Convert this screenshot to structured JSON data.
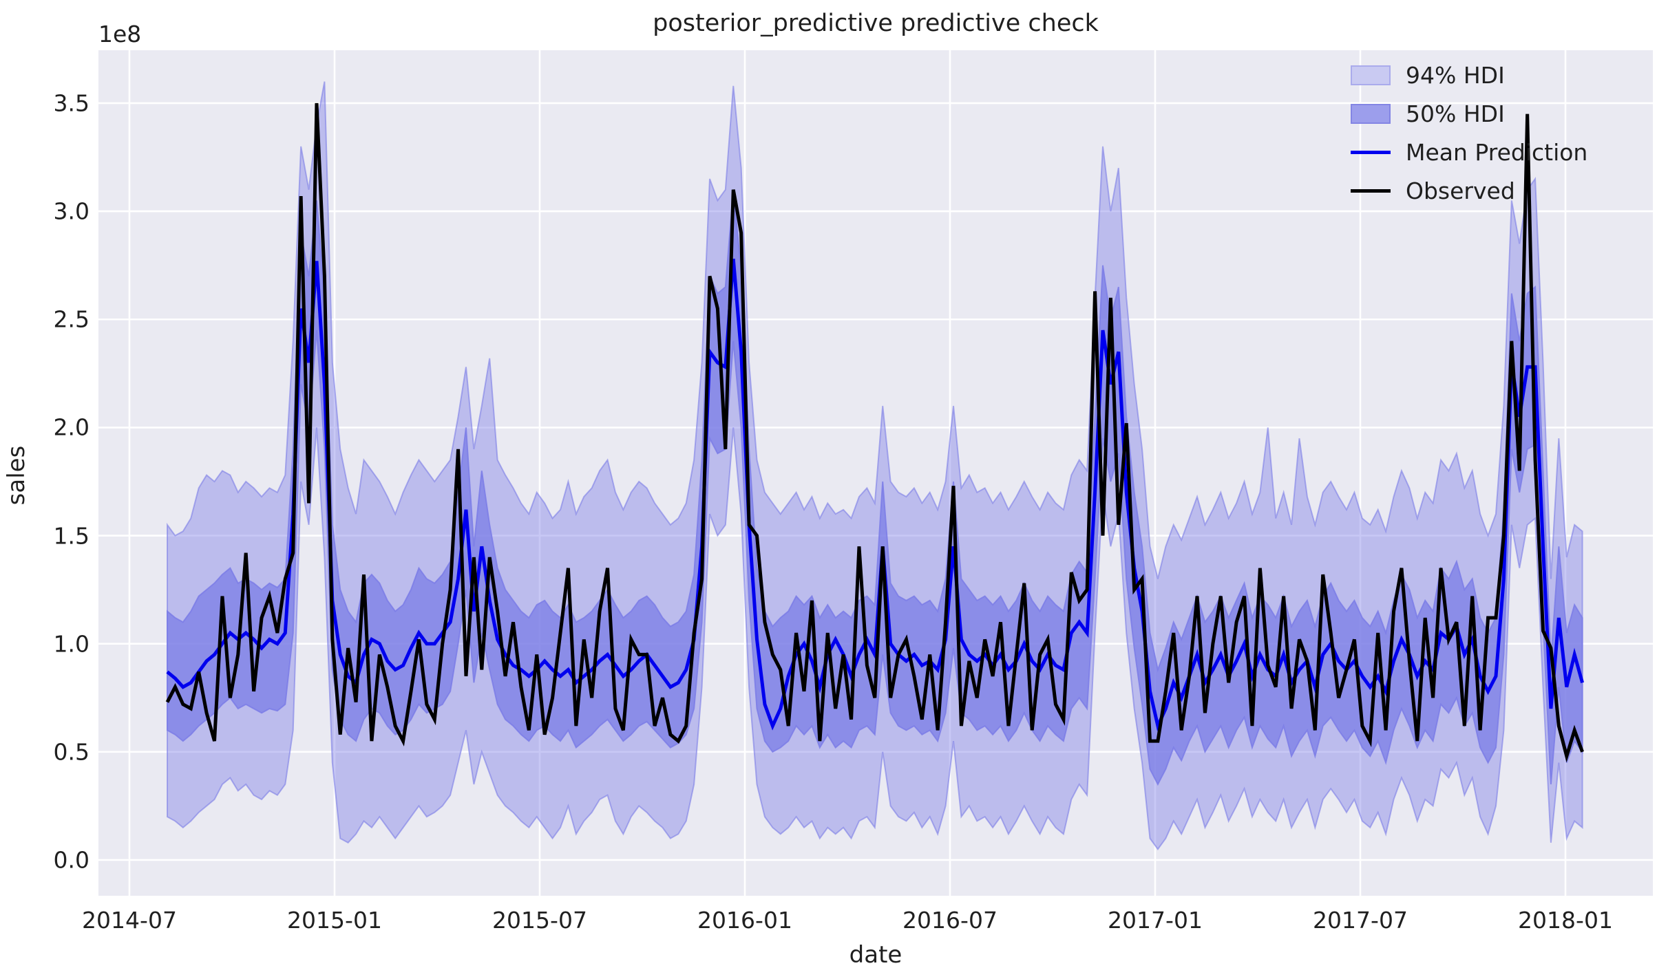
{
  "figure": {
    "title": "posterior_predictive predictive check",
    "background_color": "#ffffff",
    "axes_background_color": "#eaeaf2",
    "gridline_color": "#ffffff",
    "text_color": "#1f1f1f"
  },
  "x_axis": {
    "label": "date",
    "tick_labels": [
      "2014-07",
      "2015-01",
      "2015-07",
      "2016-01",
      "2016-07",
      "2017-01",
      "2017-07",
      "2018-01"
    ]
  },
  "y_axis": {
    "label": "sales",
    "offset_label": "1e8",
    "tick_values": [
      0.0,
      0.5,
      1.0,
      1.5,
      2.0,
      2.5,
      3.0,
      3.5
    ],
    "tick_labels": [
      "0.0",
      "0.5",
      "1.0",
      "1.5",
      "2.0",
      "2.5",
      "3.0",
      "3.5"
    ]
  },
  "legend": {
    "items": [
      {
        "label": "94% HDI",
        "type": "patch",
        "swatch_fill": "#c9caf2",
        "swatch_border": "#aaabec"
      },
      {
        "label": "50% HDI",
        "type": "patch",
        "swatch_fill": "#9c9eec",
        "swatch_border": "#8385e4"
      },
      {
        "label": "Mean Prediction",
        "type": "line",
        "color": "#0000ee"
      },
      {
        "label": "Observed",
        "type": "line",
        "color": "#000000"
      }
    ]
  },
  "chart_data": {
    "type": "line",
    "title": "posterior_predictive predictive check",
    "xlabel": "date",
    "ylabel": "sales",
    "y_unit_multiplier": "1e8",
    "ylim": [
      -0.165,
      3.745
    ],
    "grid": true,
    "legend_position": "upper right",
    "x_start_date": "2014-08-03",
    "x_interval_days": 7,
    "x_count": 181,
    "x_tick_labels": [
      "2014-07",
      "2015-01",
      "2015-07",
      "2016-01",
      "2016-07",
      "2017-01",
      "2017-07",
      "2018-01"
    ],
    "band_base_color": "#7b7de6",
    "band_94_alpha": 0.42,
    "band_50_alpha": 0.75,
    "series": [
      {
        "name": "94% HDI",
        "type": "band",
        "upper": [
          1.55,
          1.5,
          1.52,
          1.58,
          1.72,
          1.78,
          1.75,
          1.8,
          1.78,
          1.7,
          1.75,
          1.72,
          1.68,
          1.72,
          1.7,
          1.78,
          2.4,
          3.3,
          3.1,
          3.4,
          3.6,
          2.3,
          1.9,
          1.72,
          1.6,
          1.85,
          1.8,
          1.75,
          1.68,
          1.6,
          1.7,
          1.78,
          1.85,
          1.8,
          1.75,
          1.8,
          1.85,
          2.05,
          2.28,
          1.9,
          2.1,
          2.32,
          1.85,
          1.78,
          1.72,
          1.65,
          1.6,
          1.7,
          1.65,
          1.58,
          1.62,
          1.75,
          1.6,
          1.68,
          1.72,
          1.8,
          1.85,
          1.7,
          1.62,
          1.7,
          1.75,
          1.72,
          1.65,
          1.6,
          1.55,
          1.58,
          1.65,
          1.85,
          2.3,
          3.15,
          3.05,
          3.1,
          3.58,
          3.2,
          2.3,
          1.85,
          1.7,
          1.65,
          1.6,
          1.65,
          1.7,
          1.62,
          1.68,
          1.58,
          1.65,
          1.6,
          1.62,
          1.58,
          1.68,
          1.72,
          1.65,
          2.1,
          1.75,
          1.7,
          1.68,
          1.72,
          1.65,
          1.7,
          1.62,
          1.75,
          2.1,
          1.72,
          1.78,
          1.7,
          1.72,
          1.65,
          1.7,
          1.62,
          1.68,
          1.75,
          1.68,
          1.62,
          1.7,
          1.65,
          1.62,
          1.78,
          1.85,
          1.8,
          2.6,
          3.3,
          3.0,
          3.2,
          2.6,
          2.2,
          1.9,
          1.45,
          1.3,
          1.45,
          1.55,
          1.48,
          1.58,
          1.68,
          1.55,
          1.62,
          1.7,
          1.58,
          1.65,
          1.75,
          1.6,
          1.7,
          2.0,
          1.58,
          1.7,
          1.55,
          1.95,
          1.68,
          1.55,
          1.7,
          1.75,
          1.68,
          1.62,
          1.7,
          1.58,
          1.55,
          1.62,
          1.52,
          1.68,
          1.8,
          1.72,
          1.58,
          1.7,
          1.65,
          1.85,
          1.8,
          1.88,
          1.72,
          1.8,
          1.6,
          1.5,
          1.6,
          2.1,
          3.05,
          2.85,
          3.1,
          3.15,
          2.3,
          1.3,
          1.95,
          1.4,
          1.55,
          1.52
        ],
        "lower": [
          0.2,
          0.18,
          0.15,
          0.18,
          0.22,
          0.25,
          0.28,
          0.35,
          0.38,
          0.32,
          0.35,
          0.3,
          0.28,
          0.32,
          0.3,
          0.35,
          0.6,
          1.75,
          1.55,
          2.0,
          1.4,
          0.45,
          0.1,
          0.08,
          0.12,
          0.18,
          0.15,
          0.2,
          0.15,
          0.1,
          0.15,
          0.2,
          0.25,
          0.2,
          0.22,
          0.25,
          0.3,
          0.45,
          0.6,
          0.35,
          0.5,
          0.4,
          0.3,
          0.25,
          0.22,
          0.18,
          0.15,
          0.2,
          0.15,
          0.1,
          0.15,
          0.25,
          0.12,
          0.18,
          0.22,
          0.28,
          0.3,
          0.18,
          0.12,
          0.2,
          0.25,
          0.22,
          0.18,
          0.15,
          0.1,
          0.12,
          0.18,
          0.35,
          0.8,
          1.6,
          1.5,
          1.55,
          2.0,
          1.6,
          0.8,
          0.35,
          0.2,
          0.15,
          0.12,
          0.15,
          0.2,
          0.15,
          0.18,
          0.1,
          0.15,
          0.12,
          0.15,
          0.1,
          0.18,
          0.2,
          0.15,
          0.5,
          0.25,
          0.2,
          0.18,
          0.22,
          0.15,
          0.2,
          0.12,
          0.25,
          0.55,
          0.2,
          0.25,
          0.18,
          0.2,
          0.15,
          0.2,
          0.12,
          0.18,
          0.25,
          0.18,
          0.12,
          0.2,
          0.15,
          0.12,
          0.28,
          0.35,
          0.3,
          1.05,
          1.7,
          1.45,
          1.6,
          1.05,
          0.7,
          0.45,
          0.1,
          0.05,
          0.1,
          0.18,
          0.12,
          0.2,
          0.28,
          0.15,
          0.22,
          0.3,
          0.18,
          0.25,
          0.33,
          0.2,
          0.28,
          0.22,
          0.18,
          0.28,
          0.15,
          0.22,
          0.28,
          0.15,
          0.28,
          0.33,
          0.28,
          0.22,
          0.28,
          0.18,
          0.15,
          0.22,
          0.12,
          0.28,
          0.38,
          0.3,
          0.18,
          0.28,
          0.25,
          0.42,
          0.38,
          0.45,
          0.3,
          0.38,
          0.2,
          0.12,
          0.25,
          0.6,
          1.55,
          1.35,
          1.55,
          1.58,
          0.8,
          0.08,
          0.45,
          0.1,
          0.18,
          0.15
        ]
      },
      {
        "name": "50% HDI",
        "type": "band",
        "upper": [
          1.15,
          1.12,
          1.1,
          1.15,
          1.22,
          1.25,
          1.28,
          1.32,
          1.35,
          1.28,
          1.3,
          1.28,
          1.25,
          1.28,
          1.26,
          1.3,
          1.9,
          2.9,
          2.7,
          3.05,
          2.6,
          1.55,
          1.25,
          1.15,
          1.1,
          1.28,
          1.32,
          1.28,
          1.2,
          1.15,
          1.18,
          1.25,
          1.35,
          1.3,
          1.28,
          1.32,
          1.38,
          1.7,
          2.0,
          1.45,
          1.8,
          1.55,
          1.35,
          1.25,
          1.2,
          1.15,
          1.12,
          1.18,
          1.2,
          1.15,
          1.12,
          1.18,
          1.1,
          1.12,
          1.15,
          1.2,
          1.25,
          1.18,
          1.12,
          1.15,
          1.2,
          1.22,
          1.18,
          1.12,
          1.08,
          1.1,
          1.15,
          1.32,
          1.85,
          2.7,
          2.62,
          2.65,
          3.1,
          2.72,
          1.9,
          1.35,
          1.15,
          1.08,
          1.12,
          1.15,
          1.22,
          1.18,
          1.22,
          1.12,
          1.18,
          1.12,
          1.15,
          1.12,
          1.2,
          1.22,
          1.18,
          1.75,
          1.28,
          1.22,
          1.2,
          1.22,
          1.18,
          1.2,
          1.15,
          1.3,
          1.75,
          1.3,
          1.25,
          1.2,
          1.22,
          1.18,
          1.22,
          1.15,
          1.2,
          1.28,
          1.2,
          1.15,
          1.22,
          1.18,
          1.15,
          1.32,
          1.38,
          1.33,
          2.05,
          2.75,
          2.5,
          2.65,
          2.05,
          1.7,
          1.45,
          1.05,
          0.88,
          0.98,
          1.1,
          1.02,
          1.12,
          1.22,
          1.1,
          1.15,
          1.22,
          1.12,
          1.2,
          1.28,
          1.12,
          1.22,
          1.18,
          1.12,
          1.22,
          1.08,
          1.15,
          1.2,
          1.08,
          1.22,
          1.28,
          1.2,
          1.15,
          1.2,
          1.12,
          1.08,
          1.15,
          1.05,
          1.2,
          1.32,
          1.25,
          1.12,
          1.2,
          1.15,
          1.35,
          1.3,
          1.38,
          1.25,
          1.3,
          1.12,
          1.05,
          1.12,
          1.62,
          2.62,
          2.4,
          2.62,
          2.65,
          1.8,
          0.92,
          1.45,
          1.05,
          1.18,
          1.12
        ],
        "lower": [
          0.6,
          0.58,
          0.55,
          0.58,
          0.62,
          0.65,
          0.68,
          0.72,
          0.75,
          0.7,
          0.72,
          0.7,
          0.68,
          0.7,
          0.69,
          0.72,
          1.05,
          2.2,
          2.0,
          2.45,
          1.9,
          0.88,
          0.65,
          0.58,
          0.55,
          0.65,
          0.7,
          0.68,
          0.62,
          0.58,
          0.6,
          0.65,
          0.72,
          0.68,
          0.7,
          0.72,
          0.78,
          1.0,
          1.25,
          0.82,
          1.05,
          0.88,
          0.72,
          0.65,
          0.62,
          0.58,
          0.55,
          0.6,
          0.62,
          0.58,
          0.55,
          0.6,
          0.52,
          0.55,
          0.58,
          0.62,
          0.65,
          0.6,
          0.55,
          0.58,
          0.62,
          0.64,
          0.6,
          0.56,
          0.52,
          0.54,
          0.58,
          0.7,
          1.1,
          1.95,
          1.88,
          1.9,
          2.4,
          2.0,
          1.2,
          0.7,
          0.55,
          0.5,
          0.52,
          0.55,
          0.62,
          0.58,
          0.62,
          0.52,
          0.58,
          0.52,
          0.55,
          0.52,
          0.6,
          0.62,
          0.58,
          0.95,
          0.68,
          0.62,
          0.6,
          0.62,
          0.58,
          0.6,
          0.55,
          0.68,
          0.98,
          0.68,
          0.65,
          0.6,
          0.62,
          0.58,
          0.62,
          0.55,
          0.6,
          0.68,
          0.6,
          0.55,
          0.62,
          0.58,
          0.55,
          0.7,
          0.75,
          0.7,
          1.3,
          1.95,
          1.75,
          1.88,
          1.3,
          0.98,
          0.72,
          0.42,
          0.35,
          0.42,
          0.52,
          0.46,
          0.55,
          0.62,
          0.5,
          0.56,
          0.62,
          0.52,
          0.6,
          0.66,
          0.52,
          0.62,
          0.56,
          0.52,
          0.62,
          0.48,
          0.55,
          0.6,
          0.48,
          0.62,
          0.66,
          0.6,
          0.55,
          0.6,
          0.52,
          0.48,
          0.55,
          0.45,
          0.6,
          0.7,
          0.62,
          0.52,
          0.6,
          0.55,
          0.72,
          0.68,
          0.75,
          0.62,
          0.68,
          0.52,
          0.45,
          0.52,
          0.95,
          1.9,
          1.7,
          1.9,
          1.92,
          1.1,
          0.35,
          0.8,
          0.45,
          0.55,
          0.5
        ]
      },
      {
        "name": "Mean Prediction",
        "type": "line",
        "color": "#0000ee",
        "values": [
          0.87,
          0.84,
          0.8,
          0.82,
          0.87,
          0.92,
          0.95,
          1.0,
          1.05,
          1.02,
          1.05,
          1.02,
          0.98,
          1.02,
          1.0,
          1.05,
          1.6,
          2.55,
          2.3,
          2.77,
          2.2,
          1.2,
          0.95,
          0.85,
          0.82,
          0.95,
          1.02,
          1.0,
          0.92,
          0.88,
          0.9,
          0.98,
          1.05,
          1.0,
          1.0,
          1.05,
          1.1,
          1.3,
          1.62,
          1.15,
          1.45,
          1.2,
          1.02,
          0.95,
          0.9,
          0.88,
          0.85,
          0.88,
          0.92,
          0.88,
          0.85,
          0.88,
          0.82,
          0.85,
          0.88,
          0.92,
          0.95,
          0.9,
          0.85,
          0.88,
          0.92,
          0.95,
          0.9,
          0.85,
          0.8,
          0.82,
          0.88,
          1.02,
          1.45,
          2.35,
          2.3,
          2.28,
          2.78,
          2.35,
          1.55,
          1.02,
          0.72,
          0.62,
          0.7,
          0.85,
          0.95,
          1.0,
          0.92,
          0.8,
          0.95,
          1.02,
          0.95,
          0.85,
          0.95,
          1.02,
          0.95,
          1.45,
          1.0,
          0.95,
          0.92,
          0.95,
          0.9,
          0.92,
          0.88,
          1.02,
          1.45,
          1.02,
          0.95,
          0.92,
          0.95,
          0.9,
          0.95,
          0.88,
          0.92,
          1.0,
          0.92,
          0.88,
          0.95,
          0.9,
          0.88,
          1.05,
          1.1,
          1.05,
          1.7,
          2.45,
          2.2,
          2.35,
          1.7,
          1.35,
          1.15,
          0.78,
          0.62,
          0.7,
          0.82,
          0.75,
          0.85,
          0.95,
          0.82,
          0.88,
          0.95,
          0.85,
          0.92,
          1.0,
          0.85,
          0.95,
          0.88,
          0.85,
          0.95,
          0.82,
          0.88,
          0.92,
          0.8,
          0.95,
          1.0,
          0.92,
          0.88,
          0.92,
          0.85,
          0.8,
          0.85,
          0.78,
          0.92,
          1.02,
          0.95,
          0.85,
          0.92,
          0.88,
          1.05,
          1.02,
          1.08,
          0.95,
          1.02,
          0.85,
          0.78,
          0.85,
          1.3,
          2.3,
          2.05,
          2.28,
          2.28,
          1.45,
          0.7,
          1.12,
          0.8,
          0.95,
          0.82
        ]
      },
      {
        "name": "Observed",
        "type": "line",
        "color": "#000000",
        "values": [
          0.73,
          0.8,
          0.72,
          0.7,
          0.87,
          0.68,
          0.55,
          1.22,
          0.75,
          0.95,
          1.42,
          0.78,
          1.12,
          1.22,
          1.05,
          1.3,
          1.42,
          3.07,
          1.65,
          3.5,
          2.7,
          1.02,
          0.58,
          0.98,
          0.73,
          1.32,
          0.55,
          0.95,
          0.8,
          0.62,
          0.55,
          0.78,
          1.02,
          0.72,
          0.65,
          1.0,
          1.25,
          1.9,
          0.85,
          1.4,
          0.88,
          1.4,
          1.15,
          0.85,
          1.1,
          0.8,
          0.6,
          0.95,
          0.58,
          0.75,
          1.05,
          1.35,
          0.62,
          1.02,
          0.75,
          1.15,
          1.35,
          0.7,
          0.6,
          1.02,
          0.95,
          0.95,
          0.62,
          0.75,
          0.58,
          0.55,
          0.62,
          1.05,
          1.3,
          2.7,
          2.55,
          1.9,
          3.1,
          2.9,
          1.55,
          1.5,
          1.1,
          0.95,
          0.88,
          0.62,
          1.05,
          0.78,
          1.2,
          0.55,
          1.05,
          0.7,
          0.95,
          0.65,
          1.45,
          0.9,
          0.75,
          1.45,
          0.75,
          0.95,
          1.02,
          0.85,
          0.65,
          0.95,
          0.6,
          1.1,
          1.73,
          0.62,
          0.92,
          0.75,
          1.02,
          0.85,
          1.1,
          0.62,
          0.95,
          1.28,
          0.6,
          0.95,
          1.02,
          0.72,
          0.65,
          1.33,
          1.2,
          1.25,
          2.63,
          1.5,
          2.6,
          1.55,
          2.02,
          1.25,
          1.3,
          0.55,
          0.55,
          0.78,
          1.05,
          0.6,
          0.85,
          1.22,
          0.68,
          1.0,
          1.22,
          0.82,
          1.1,
          1.22,
          0.62,
          1.35,
          0.9,
          0.8,
          1.22,
          0.7,
          1.02,
          0.92,
          0.6,
          1.32,
          1.05,
          0.75,
          0.88,
          1.02,
          0.62,
          0.55,
          1.05,
          0.6,
          1.15,
          1.35,
          0.92,
          0.55,
          1.12,
          0.75,
          1.35,
          1.02,
          1.1,
          0.62,
          1.22,
          0.6,
          1.12,
          1.12,
          1.5,
          2.4,
          1.8,
          3.45,
          1.85,
          1.06,
          0.98,
          0.62,
          0.48,
          0.6,
          0.5
        ]
      }
    ]
  }
}
